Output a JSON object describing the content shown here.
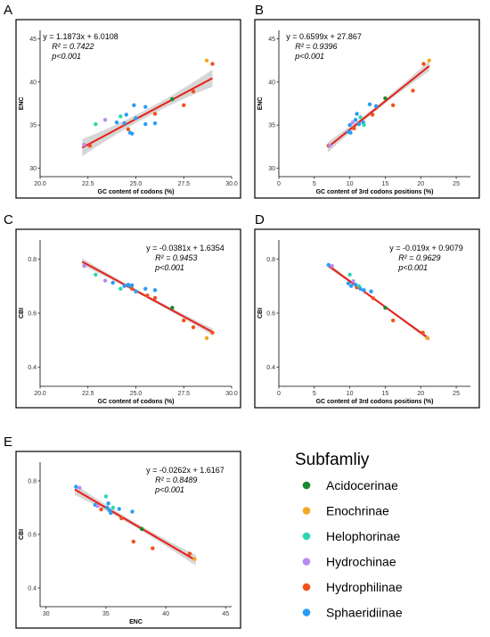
{
  "panels": [
    {
      "id": "A",
      "label": "A",
      "xlabel": "GC content of codons (%)",
      "ylabel": "ENC",
      "xlim": [
        20,
        30
      ],
      "ylim": [
        29,
        46
      ],
      "xticks": [
        20.0,
        22.5,
        25.0,
        27.5,
        30.0
      ],
      "xtick_labels": [
        "20.0",
        "22.5",
        "25.0",
        "27.5",
        "30.0"
      ],
      "yticks": [
        30,
        35,
        40,
        45
      ],
      "ytick_labels": [
        "30",
        "35",
        "40",
        "45"
      ],
      "equation": "y  = 1.1873x + 6.0108",
      "r2": "R² = 0.7422",
      "p": "p<0.001",
      "fit": {
        "slope": 1.1873,
        "intercept": 6.0108,
        "x_range": [
          22.2,
          29.0
        ]
      },
      "band": 1.0,
      "points": [
        {
          "x": 22.3,
          "y": 32.7,
          "g": "Hydrochinae"
        },
        {
          "x": 22.6,
          "y": 32.6,
          "g": "Hydrophilinae"
        },
        {
          "x": 22.9,
          "y": 35.1,
          "g": "Helophorinae"
        },
        {
          "x": 23.4,
          "y": 35.6,
          "g": "Hydrochinae"
        },
        {
          "x": 24.0,
          "y": 35.3,
          "g": "Sphaeridiinae"
        },
        {
          "x": 24.2,
          "y": 36.0,
          "g": "Helophorinae"
        },
        {
          "x": 24.4,
          "y": 35.2,
          "g": "Sphaeridiinae"
        },
        {
          "x": 24.5,
          "y": 36.2,
          "g": "Sphaeridiinae"
        },
        {
          "x": 24.6,
          "y": 34.5,
          "g": "Hydrophilinae"
        },
        {
          "x": 24.7,
          "y": 34.1,
          "g": "Sphaeridiinae"
        },
        {
          "x": 24.8,
          "y": 34.0,
          "g": "Sphaeridiinae"
        },
        {
          "x": 24.9,
          "y": 37.3,
          "g": "Sphaeridiinae"
        },
        {
          "x": 25.0,
          "y": 35.8,
          "g": "Sphaeridiinae"
        },
        {
          "x": 25.5,
          "y": 37.1,
          "g": "Sphaeridiinae"
        },
        {
          "x": 25.5,
          "y": 35.1,
          "g": "Sphaeridiinae"
        },
        {
          "x": 26.0,
          "y": 36.3,
          "g": "Hydrophilinae"
        },
        {
          "x": 26.0,
          "y": 35.2,
          "g": "Sphaeridiinae"
        },
        {
          "x": 26.9,
          "y": 38.0,
          "g": "Acidocerinae"
        },
        {
          "x": 27.5,
          "y": 37.3,
          "g": "Hydrophilinae"
        },
        {
          "x": 28.0,
          "y": 38.9,
          "g": "Hydrophilinae"
        },
        {
          "x": 28.7,
          "y": 42.5,
          "g": "Enochrinae"
        },
        {
          "x": 29.0,
          "y": 42.1,
          "g": "Hydrophilinae"
        }
      ]
    },
    {
      "id": "B",
      "label": "B",
      "xlabel": "GC content of 3rd codons positions (%)",
      "ylabel": "ENC",
      "xlim": [
        0,
        27
      ],
      "ylim": [
        29,
        46
      ],
      "xticks": [
        0,
        5,
        10,
        15,
        20,
        25
      ],
      "xtick_labels": [
        "0",
        "5",
        "10",
        "15",
        "20",
        "25"
      ],
      "yticks": [
        30,
        35,
        40,
        45
      ],
      "ytick_labels": [
        "30",
        "35",
        "40",
        "45"
      ],
      "equation": "y  = 0.6599x + 27.867",
      "r2": "R² = 0.9396",
      "p": "p<0.001",
      "fit": {
        "slope": 0.6599,
        "intercept": 27.867,
        "x_range": [
          6.9,
          21.2
        ]
      },
      "band": 0.6,
      "points": [
        {
          "x": 7.0,
          "y": 32.6,
          "g": "Hydrophilinae"
        },
        {
          "x": 7.2,
          "y": 32.6,
          "g": "Hydrochinae"
        },
        {
          "x": 9.8,
          "y": 34.2,
          "g": "Sphaeridiinae"
        },
        {
          "x": 10.0,
          "y": 35.0,
          "g": "Sphaeridiinae"
        },
        {
          "x": 10.1,
          "y": 34.1,
          "g": "Sphaeridiinae"
        },
        {
          "x": 10.4,
          "y": 35.3,
          "g": "Hydrochinae"
        },
        {
          "x": 10.6,
          "y": 34.6,
          "g": "Hydrophilinae"
        },
        {
          "x": 10.8,
          "y": 35.6,
          "g": "Sphaeridiinae"
        },
        {
          "x": 11.0,
          "y": 36.3,
          "g": "Sphaeridiinae"
        },
        {
          "x": 11.3,
          "y": 35.1,
          "g": "Sphaeridiinae"
        },
        {
          "x": 11.5,
          "y": 35.9,
          "g": "Helophorinae"
        },
        {
          "x": 11.9,
          "y": 35.3,
          "g": "Sphaeridiinae"
        },
        {
          "x": 12.0,
          "y": 35.0,
          "g": "Helophorinae"
        },
        {
          "x": 12.8,
          "y": 37.4,
          "g": "Sphaeridiinae"
        },
        {
          "x": 13.2,
          "y": 36.2,
          "g": "Hydrophilinae"
        },
        {
          "x": 13.7,
          "y": 37.2,
          "g": "Sphaeridiinae"
        },
        {
          "x": 15.0,
          "y": 38.1,
          "g": "Acidocerinae"
        },
        {
          "x": 16.1,
          "y": 37.3,
          "g": "Hydrophilinae"
        },
        {
          "x": 18.9,
          "y": 39.0,
          "g": "Hydrophilinae"
        },
        {
          "x": 20.4,
          "y": 42.1,
          "g": "Hydrophilinae"
        },
        {
          "x": 21.2,
          "y": 42.5,
          "g": "Enochrinae"
        }
      ]
    },
    {
      "id": "C",
      "label": "C",
      "xlabel": "GC content of codons (%)",
      "ylabel": "CBI",
      "xlim": [
        20,
        30
      ],
      "ylim": [
        0.33,
        0.87
      ],
      "xticks": [
        20.0,
        22.5,
        25.0,
        27.5,
        30.0
      ],
      "xtick_labels": [
        "20.0",
        "22.5",
        "25.0",
        "27.5",
        "30.0"
      ],
      "yticks": [
        0.4,
        0.6,
        0.8
      ],
      "ytick_labels": [
        "0.4",
        "0.6",
        "0.8"
      ],
      "equation": "y  = -0.0381x + 1.6354",
      "r2": "R² = 0.9453",
      "p": "p<0.001",
      "fit": {
        "slope": -0.0381,
        "intercept": 1.6354,
        "x_range": [
          22.2,
          29.0
        ]
      },
      "band": 0.013,
      "points": [
        {
          "x": 22.3,
          "y": 0.774,
          "g": "Hydrochinae"
        },
        {
          "x": 22.9,
          "y": 0.742,
          "g": "Helophorinae"
        },
        {
          "x": 23.4,
          "y": 0.72,
          "g": "Hydrochinae"
        },
        {
          "x": 23.8,
          "y": 0.712,
          "g": "Sphaeridiinae"
        },
        {
          "x": 24.2,
          "y": 0.69,
          "g": "Helophorinae"
        },
        {
          "x": 24.4,
          "y": 0.7,
          "g": "Sphaeridiinae"
        },
        {
          "x": 24.6,
          "y": 0.705,
          "g": "Sphaeridiinae"
        },
        {
          "x": 24.7,
          "y": 0.7,
          "g": "Sphaeridiinae"
        },
        {
          "x": 24.8,
          "y": 0.703,
          "g": "Sphaeridiinae"
        },
        {
          "x": 24.8,
          "y": 0.69,
          "g": "Hydrophilinae"
        },
        {
          "x": 25.0,
          "y": 0.68,
          "g": "Sphaeridiinae"
        },
        {
          "x": 25.5,
          "y": 0.69,
          "g": "Sphaeridiinae"
        },
        {
          "x": 25.6,
          "y": 0.665,
          "g": "Hydrophilinae"
        },
        {
          "x": 26.0,
          "y": 0.685,
          "g": "Sphaeridiinae"
        },
        {
          "x": 26.0,
          "y": 0.656,
          "g": "Hydrophilinae"
        },
        {
          "x": 26.9,
          "y": 0.62,
          "g": "Acidocerinae"
        },
        {
          "x": 27.5,
          "y": 0.573,
          "g": "Hydrophilinae"
        },
        {
          "x": 28.0,
          "y": 0.548,
          "g": "Hydrophilinae"
        },
        {
          "x": 28.7,
          "y": 0.508,
          "g": "Enochrinae"
        },
        {
          "x": 29.0,
          "y": 0.528,
          "g": "Hydrophilinae"
        }
      ]
    },
    {
      "id": "D",
      "label": "D",
      "xlabel": "GC content of 3rd codons positions (%)",
      "ylabel": "CBI",
      "xlim": [
        0,
        27
      ],
      "ylim": [
        0.33,
        0.87
      ],
      "xticks": [
        0,
        5,
        10,
        15,
        20,
        25
      ],
      "xtick_labels": [
        "0",
        "5",
        "10",
        "15",
        "20",
        "25"
      ],
      "yticks": [
        0.4,
        0.6,
        0.8
      ],
      "ytick_labels": [
        "0.4",
        "0.6",
        "0.8"
      ],
      "equation": "y  = -0.019x + 0.9079",
      "r2": "R² = 0.9629",
      "p": "p<0.001",
      "fit": {
        "slope": -0.019,
        "intercept": 0.9079,
        "x_range": [
          6.9,
          21.2
        ]
      },
      "band": 0.009,
      "points": [
        {
          "x": 7.0,
          "y": 0.778,
          "g": "Sphaeridiinae"
        },
        {
          "x": 7.5,
          "y": 0.774,
          "g": "Hydrochinae"
        },
        {
          "x": 9.8,
          "y": 0.71,
          "g": "Sphaeridiinae"
        },
        {
          "x": 10.0,
          "y": 0.742,
          "g": "Helophorinae"
        },
        {
          "x": 10.2,
          "y": 0.7,
          "g": "Sphaeridiinae"
        },
        {
          "x": 10.5,
          "y": 0.718,
          "g": "Hydrochinae"
        },
        {
          "x": 10.8,
          "y": 0.705,
          "g": "Sphaeridiinae"
        },
        {
          "x": 11.0,
          "y": 0.695,
          "g": "Hydrophilinae"
        },
        {
          "x": 11.3,
          "y": 0.7,
          "g": "Helophorinae"
        },
        {
          "x": 11.5,
          "y": 0.69,
          "g": "Sphaeridiinae"
        },
        {
          "x": 12.0,
          "y": 0.685,
          "g": "Sphaeridiinae"
        },
        {
          "x": 13.0,
          "y": 0.68,
          "g": "Sphaeridiinae"
        },
        {
          "x": 13.3,
          "y": 0.655,
          "g": "Hydrophilinae"
        },
        {
          "x": 15.0,
          "y": 0.62,
          "g": "Acidocerinae"
        },
        {
          "x": 16.1,
          "y": 0.573,
          "g": "Hydrophilinae"
        },
        {
          "x": 20.3,
          "y": 0.528,
          "g": "Hydrophilinae"
        },
        {
          "x": 20.9,
          "y": 0.508,
          "g": "Enochrinae"
        }
      ]
    },
    {
      "id": "E",
      "label": "E",
      "xlabel": "ENC",
      "ylabel": "CBI",
      "xlim": [
        29.5,
        45.5
      ],
      "ylim": [
        0.33,
        0.87
      ],
      "xticks": [
        30,
        35,
        40,
        45
      ],
      "xtick_labels": [
        "30",
        "35",
        "40",
        "45"
      ],
      "yticks": [
        0.4,
        0.6,
        0.8
      ],
      "ytick_labels": [
        "0.4",
        "0.6",
        "0.8"
      ],
      "equation": "y  = -0.0262x + 1.6167",
      "r2": "R² = 0.8489",
      "p": "p<0.001",
      "fit": {
        "slope": -0.0262,
        "intercept": 1.6167,
        "x_range": [
          32.4,
          42.5
        ]
      },
      "band": 0.02,
      "points": [
        {
          "x": 32.5,
          "y": 0.778,
          "g": "Sphaeridiinae"
        },
        {
          "x": 32.8,
          "y": 0.774,
          "g": "Hydrochinae"
        },
        {
          "x": 34.1,
          "y": 0.71,
          "g": "Sphaeridiinae"
        },
        {
          "x": 34.3,
          "y": 0.706,
          "g": "Hydrochinae"
        },
        {
          "x": 34.6,
          "y": 0.693,
          "g": "Hydrophilinae"
        },
        {
          "x": 35.0,
          "y": 0.742,
          "g": "Helophorinae"
        },
        {
          "x": 35.1,
          "y": 0.7,
          "g": "Sphaeridiinae"
        },
        {
          "x": 35.2,
          "y": 0.716,
          "g": "Sphaeridiinae"
        },
        {
          "x": 35.3,
          "y": 0.69,
          "g": "Sphaeridiinae"
        },
        {
          "x": 35.4,
          "y": 0.68,
          "g": "Sphaeridiinae"
        },
        {
          "x": 35.6,
          "y": 0.7,
          "g": "Helophorinae"
        },
        {
          "x": 36.1,
          "y": 0.695,
          "g": "Sphaeridiinae"
        },
        {
          "x": 36.3,
          "y": 0.66,
          "g": "Hydrophilinae"
        },
        {
          "x": 37.2,
          "y": 0.685,
          "g": "Sphaeridiinae"
        },
        {
          "x": 37.3,
          "y": 0.573,
          "g": "Hydrophilinae"
        },
        {
          "x": 38.0,
          "y": 0.62,
          "g": "Acidocerinae"
        },
        {
          "x": 38.9,
          "y": 0.548,
          "g": "Hydrophilinae"
        },
        {
          "x": 42.0,
          "y": 0.528,
          "g": "Hydrophilinae"
        },
        {
          "x": 42.4,
          "y": 0.508,
          "g": "Enochrinae"
        }
      ]
    }
  ],
  "legend": {
    "title": "Subfamliy",
    "items": [
      {
        "name": "Acidocerinae",
        "color": "#1a8a2e"
      },
      {
        "name": "Enochrinae",
        "color": "#f5a623"
      },
      {
        "name": "Helophorinae",
        "color": "#2fd6b0"
      },
      {
        "name": "Hydrochinae",
        "color": "#b98bf0"
      },
      {
        "name": "Hydrophilinae",
        "color": "#f0521c"
      },
      {
        "name": "Sphaeridiinae",
        "color": "#2a9df4"
      }
    ]
  },
  "style": {
    "fit_line_color": "#e8201a",
    "band_color": "#c8c8c8"
  },
  "chart_data": [
    {
      "type": "scatter",
      "panel": "A",
      "xlabel": "GC content of codons (%)",
      "ylabel": "ENC",
      "xlim": [
        20,
        30
      ],
      "ylim": [
        29,
        46
      ]
    },
    {
      "type": "scatter",
      "panel": "B",
      "xlabel": "GC content of 3rd codons positions (%)",
      "ylabel": "ENC",
      "xlim": [
        0,
        27
      ],
      "ylim": [
        29,
        46
      ]
    },
    {
      "type": "scatter",
      "panel": "C",
      "xlabel": "GC content of codons (%)",
      "ylabel": "CBI",
      "xlim": [
        20,
        30
      ],
      "ylim": [
        0.33,
        0.87
      ]
    },
    {
      "type": "scatter",
      "panel": "D",
      "xlabel": "GC content of 3rd codons positions (%)",
      "ylabel": "CBI",
      "xlim": [
        0,
        27
      ],
      "ylim": [
        0.33,
        0.87
      ]
    },
    {
      "type": "scatter",
      "panel": "E",
      "xlabel": "ENC",
      "ylabel": "CBI",
      "xlim": [
        29.5,
        45.5
      ],
      "ylim": [
        0.33,
        0.87
      ]
    }
  ]
}
